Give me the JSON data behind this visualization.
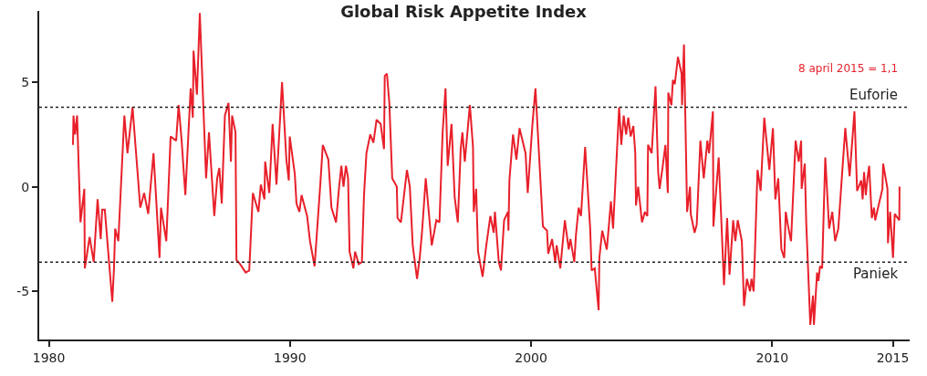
{
  "chart_data": {
    "type": "line",
    "title": "Global Risk Appetite Index",
    "x": [
      1981.0,
      1981.02,
      1981.09,
      1981.17,
      1981.31,
      1981.47,
      1981.49,
      1981.69,
      1981.86,
      1982.02,
      1982.15,
      1982.21,
      1982.32,
      1982.63,
      1982.7,
      1982.75,
      1982.88,
      1983.13,
      1983.26,
      1983.47,
      1983.79,
      1983.95,
      1984.12,
      1984.34,
      1984.59,
      1984.65,
      1984.87,
      1985.05,
      1985.28,
      1985.38,
      1985.5,
      1985.66,
      1985.88,
      1985.97,
      1986.0,
      1986.14,
      1986.26,
      1986.52,
      1986.64,
      1986.86,
      1986.98,
      1987.07,
      1987.17,
      1987.3,
      1987.45,
      1987.55,
      1987.6,
      1987.74,
      1987.78,
      1987.93,
      1988.16,
      1988.31,
      1988.46,
      1988.69,
      1988.79,
      1988.94,
      1988.97,
      1989.14,
      1989.28,
      1989.44,
      1989.67,
      1989.85,
      1989.95,
      1989.99,
      1990.2,
      1990.27,
      1990.39,
      1990.48,
      1990.71,
      1990.83,
      1991.02,
      1991.28,
      1991.36,
      1991.59,
      1991.72,
      1991.91,
      1992.03,
      1992.13,
      1992.22,
      1992.32,
      1992.41,
      1992.47,
      1992.63,
      1992.7,
      1992.85,
      1992.98,
      1993.07,
      1993.17,
      1993.33,
      1993.46,
      1993.59,
      1993.76,
      1993.9,
      1993.93,
      1994.02,
      1994.12,
      1994.24,
      1994.43,
      1994.46,
      1994.6,
      1994.69,
      1994.85,
      1994.97,
      1995.09,
      1995.27,
      1995.38,
      1995.48,
      1995.63,
      1995.88,
      1996.07,
      1996.2,
      1996.33,
      1996.45,
      1996.54,
      1996.7,
      1996.83,
      1996.96,
      1997.08,
      1997.15,
      1997.25,
      1997.46,
      1997.59,
      1997.62,
      1997.72,
      1997.8,
      1997.99,
      1998.13,
      1998.31,
      1998.45,
      1998.5,
      1998.66,
      1998.75,
      1998.88,
      1999.04,
      1999.06,
      1999.1,
      1999.25,
      1999.39,
      1999.52,
      1999.77,
      1999.86,
      2000.05,
      2000.18,
      2000.49,
      2000.66,
      2000.71,
      2000.87,
      2001.0,
      2001.06,
      2001.21,
      2001.4,
      2001.56,
      2001.63,
      2001.79,
      2001.86,
      2001.97,
      2002.07,
      2002.24,
      2002.45,
      2002.51,
      2002.64,
      2002.8,
      2002.83,
      2002.95,
      2003.14,
      2003.31,
      2003.4,
      2003.65,
      2003.74,
      2003.84,
      2003.94,
      2004.03,
      2004.13,
      2004.24,
      2004.32,
      2004.35,
      2004.44,
      2004.6,
      2004.72,
      2004.82,
      2004.85,
      2005.0,
      2005.16,
      2005.27,
      2005.33,
      2005.45,
      2005.57,
      2005.67,
      2005.69,
      2005.82,
      2005.88,
      2005.96,
      2006.09,
      2006.24,
      2006.26,
      2006.34,
      2006.47,
      2006.59,
      2006.62,
      2006.78,
      2006.87,
      2007.02,
      2007.16,
      2007.31,
      2007.38,
      2007.54,
      2007.56,
      2007.78,
      2008.0,
      2008.13,
      2008.23,
      2008.38,
      2008.47,
      2008.57,
      2008.74,
      2008.83,
      2008.95,
      2009.08,
      2009.14,
      2009.23,
      2009.39,
      2009.52,
      2009.67,
      2009.88,
      2010.03,
      2010.13,
      2010.25,
      2010.38,
      2010.5,
      2010.56,
      2010.66,
      2010.78,
      2010.97,
      2011.1,
      2011.2,
      2011.22,
      2011.35,
      2011.41,
      2011.58,
      2011.69,
      2011.73,
      2011.86,
      2011.92,
      2011.98,
      2012.07,
      2012.2,
      2012.36,
      2012.49,
      2012.61,
      2012.74,
      2013.03,
      2013.21,
      2013.41,
      2013.52,
      2013.69,
      2013.75,
      2013.81,
      2013.88,
      2013.94,
      2014.02,
      2014.13,
      2014.22,
      2014.27,
      2014.57,
      2014.6,
      2014.78,
      2014.8,
      2014.89,
      2015.01,
      2015.08,
      2015.27,
      2015.28
    ],
    "series": [
      {
        "color": "#e8202a",
        "values": [
          2.0,
          3.4,
          2.5,
          3.4,
          -1.7,
          -0.1,
          -3.9,
          -2.4,
          -3.6,
          -0.6,
          -2.5,
          -1.1,
          -1.1,
          -5.5,
          -3.9,
          -2.0,
          -2.6,
          3.4,
          1.6,
          3.8,
          -1.0,
          -0.3,
          -1.3,
          1.6,
          -3.4,
          -1.0,
          -2.6,
          2.4,
          2.2,
          3.9,
          2.3,
          -0.4,
          4.7,
          3.3,
          6.5,
          4.4,
          8.3,
          0.4,
          2.6,
          -1.4,
          0.4,
          0.9,
          -0.8,
          3.4,
          4.0,
          1.2,
          3.4,
          2.6,
          -3.5,
          -3.7,
          -4.1,
          -4.0,
          -0.3,
          -1.2,
          0.1,
          -0.6,
          1.2,
          -0.3,
          3.0,
          0.1,
          5.0,
          1.3,
          0.3,
          2.4,
          0.6,
          -0.8,
          -1.2,
          -0.4,
          -1.4,
          -2.6,
          -3.8,
          0.5,
          2.0,
          1.3,
          -1.0,
          -1.7,
          -0.1,
          1.0,
          0,
          1.0,
          0.4,
          -3.1,
          -3.9,
          -3.1,
          -3.7,
          -3.6,
          -0.4,
          1.6,
          2.5,
          2.1,
          3.2,
          3.0,
          1.8,
          5.3,
          5.4,
          4.0,
          0.4,
          0,
          -1.5,
          -1.7,
          -0.8,
          0.8,
          0,
          -2.8,
          -4.4,
          -3.4,
          -2.1,
          0.4,
          -2.8,
          -1.6,
          -1.7,
          2.6,
          4.7,
          1.0,
          3.0,
          -0.5,
          -1.7,
          1.8,
          2.6,
          1.2,
          3.9,
          1.9,
          -1.2,
          -0.1,
          -3.1,
          -4.3,
          -2.9,
          -1.4,
          -2.2,
          -1.2,
          -3.6,
          -4.0,
          -1.6,
          -1.2,
          -2.1,
          0.3,
          2.5,
          1.3,
          2.8,
          1.6,
          -0.3,
          2.9,
          4.7,
          -1.9,
          -2.1,
          -3.2,
          -2.5,
          -3.6,
          -2.8,
          -3.9,
          -1.6,
          -3.0,
          -2.5,
          -3.6,
          -2.3,
          -1.0,
          -1.4,
          1.9,
          -2.0,
          -4.0,
          -3.9,
          -5.9,
          -3.4,
          -2.1,
          -3.0,
          -0.7,
          -2.0,
          3.8,
          2.0,
          3.4,
          2.5,
          3.3,
          2.4,
          2.9,
          1.6,
          -0.9,
          0,
          -1.7,
          -1.2,
          -1.4,
          2.0,
          1.6,
          4.8,
          0.7,
          -0.1,
          0.9,
          2.0,
          -0.3,
          4.5,
          3.9,
          5.1,
          4.9,
          6.2,
          5.4,
          3.9,
          6.8,
          -1.2,
          0,
          -1.3,
          -2.2,
          -1.8,
          2.2,
          0.4,
          2.2,
          1.6,
          3.6,
          -1.9,
          1.4,
          -4.7,
          -1.5,
          -4.2,
          -1.6,
          -2.6,
          -1.6,
          -2.6,
          -5.7,
          -4.4,
          -5.0,
          -4.4,
          -5.0,
          0.8,
          -0.2,
          3.3,
          0.8,
          2.8,
          -0.6,
          0.4,
          -3.0,
          -3.4,
          -1.2,
          -1.9,
          -2.6,
          2.2,
          1.2,
          2.2,
          -0.1,
          1.1,
          -1.7,
          -6.6,
          -5.2,
          -6.6,
          -4.1,
          -4.5,
          -3.8,
          -3.9,
          1.4,
          -2.0,
          -1.2,
          -2.6,
          -2.0,
          2.8,
          0.5,
          3.6,
          -0.2,
          0.3,
          -0.6,
          0.7,
          -0.4,
          0.3,
          1.0,
          -1.5,
          -1.0,
          -1.6,
          -0.1,
          1.1,
          -0.1,
          -2.7,
          -1.2,
          -3.4,
          -1.3,
          -1.6,
          0
        ]
      }
    ],
    "xlim": [
      1979.6,
      2015.7
    ],
    "xticks": [
      1980,
      1990,
      2000,
      2010,
      2015
    ],
    "ylim": [
      -7.3,
      8.4
    ],
    "yticks": [
      -5,
      0,
      5
    ],
    "marker": "none",
    "line_style": "solid",
    "ref_lines": [
      {
        "axis": "y",
        "value": 3.8,
        "label": "Euforie",
        "color": "#222222",
        "line_style": "dotted"
      },
      {
        "axis": "y",
        "value": -3.6,
        "label": "Paniek",
        "color": "#222222",
        "line_style": "dotted"
      }
    ],
    "annotations": [
      "8 april 2015 = 1,1"
    ]
  }
}
